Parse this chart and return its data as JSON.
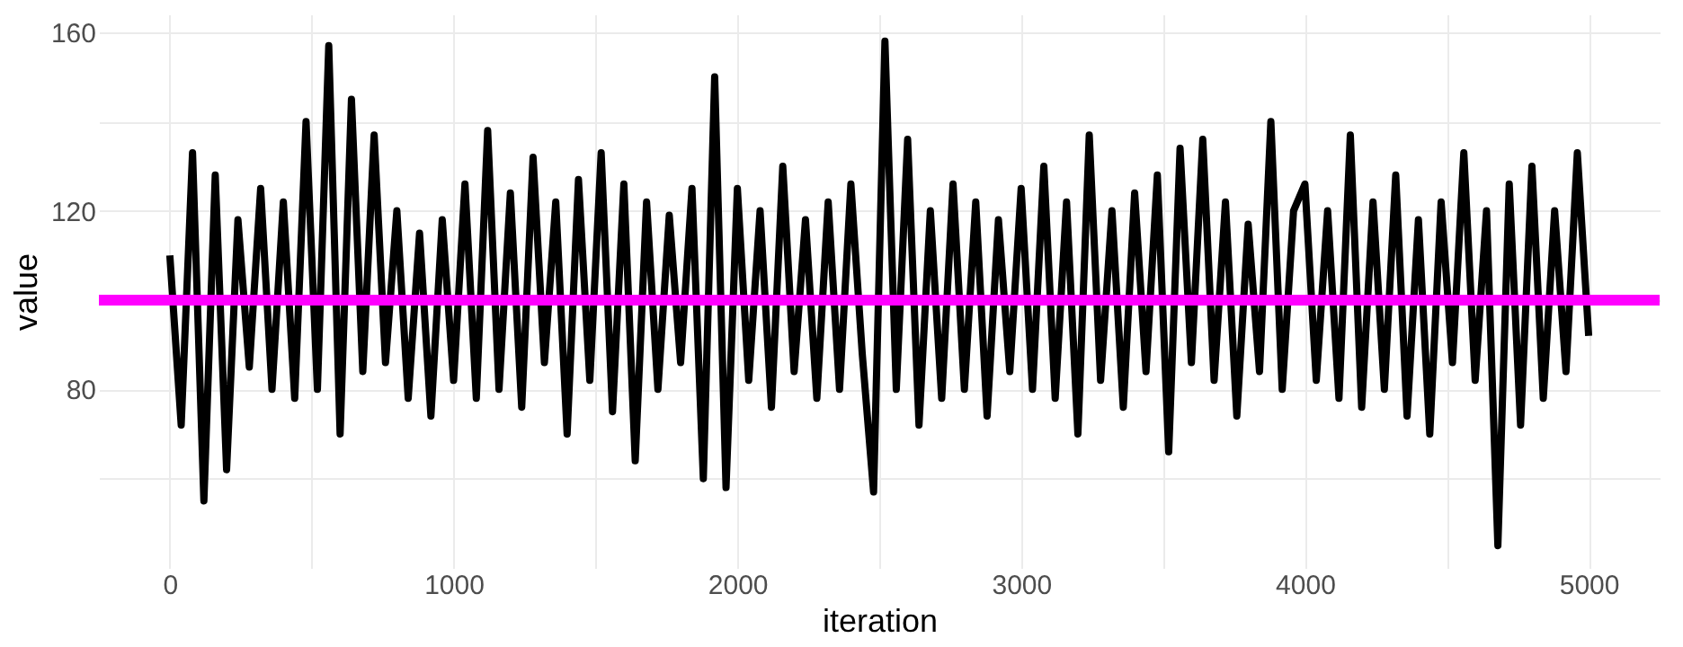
{
  "chart_data": {
    "type": "line",
    "xlabel": "iteration",
    "ylabel": "value",
    "x": [
      0,
      40,
      80,
      120,
      160,
      200,
      240,
      280,
      320,
      360,
      400,
      440,
      480,
      520,
      560,
      600,
      640,
      680,
      720,
      760,
      800,
      840,
      880,
      920,
      960,
      1000,
      1040,
      1080,
      1120,
      1160,
      1200,
      1240,
      1280,
      1320,
      1360,
      1400,
      1440,
      1480,
      1520,
      1560,
      1600,
      1640,
      1680,
      1720,
      1760,
      1800,
      1840,
      1880,
      1920,
      1960,
      2000,
      2040,
      2080,
      2120,
      2160,
      2200,
      2240,
      2280,
      2320,
      2360,
      2400,
      2440,
      2480,
      2520,
      2560,
      2600,
      2640,
      2680,
      2720,
      2760,
      2800,
      2840,
      2880,
      2920,
      2960,
      3000,
      3040,
      3080,
      3120,
      3160,
      3200,
      3240,
      3280,
      3320,
      3360,
      3400,
      3440,
      3480,
      3520,
      3560,
      3600,
      3640,
      3680,
      3720,
      3760,
      3800,
      3840,
      3880,
      3920,
      3960,
      4000,
      4040,
      4080,
      4120,
      4160,
      4200,
      4240,
      4280,
      4320,
      4360,
      4400,
      4440,
      4480,
      4520,
      4560,
      4600,
      4640,
      4680,
      4720,
      4760,
      4800,
      4840,
      4880,
      4920,
      4960,
      5000
    ],
    "series": [
      {
        "color": "#000000",
        "values": [
          110,
          72,
          133,
          55,
          128,
          62,
          118,
          85,
          125,
          80,
          122,
          78,
          140,
          80,
          157,
          70,
          145,
          84,
          137,
          86,
          120,
          78,
          115,
          74,
          118,
          82,
          126,
          78,
          138,
          80,
          124,
          76,
          132,
          86,
          122,
          70,
          127,
          82,
          133,
          75,
          126,
          64,
          122,
          80,
          119,
          86,
          125,
          60,
          150,
          58,
          125,
          82,
          120,
          76,
          130,
          84,
          118,
          78,
          122,
          80,
          126,
          88,
          57,
          158,
          80,
          136,
          72,
          120,
          78,
          126,
          80,
          122,
          74,
          118,
          84,
          125,
          80,
          130,
          78,
          122,
          70,
          137,
          82,
          120,
          76,
          124,
          84,
          128,
          66,
          134,
          86,
          136,
          82,
          122,
          74,
          117,
          84,
          140,
          80,
          120,
          126,
          82,
          120,
          78,
          137,
          76,
          122,
          80,
          128,
          74,
          118,
          70,
          122,
          86,
          133,
          82,
          120,
          45,
          126,
          72,
          130,
          78,
          120,
          84,
          133,
          92
        ]
      }
    ],
    "xlim": [
      -250,
      5250
    ],
    "ylim": [
      40,
      164
    ],
    "xticks": [
      0,
      {
        "value": 500,
        "label": null
      },
      1000,
      {
        "value": 1500,
        "label": null
      },
      2000,
      {
        "value": 2500,
        "label": null
      },
      3000,
      {
        "value": 3500,
        "label": null
      },
      4000,
      {
        "value": 4500,
        "label": null
      },
      5000
    ],
    "yticks": [
      {
        "value": 60,
        "label": null
      },
      80,
      {
        "value": 100,
        "label": null
      },
      120,
      {
        "value": 140,
        "label": null
      },
      160
    ],
    "ref_lines": [
      {
        "axis": "y",
        "value": 100,
        "color": "#ff00ff"
      }
    ],
    "grid": true,
    "line_style": "solid"
  }
}
